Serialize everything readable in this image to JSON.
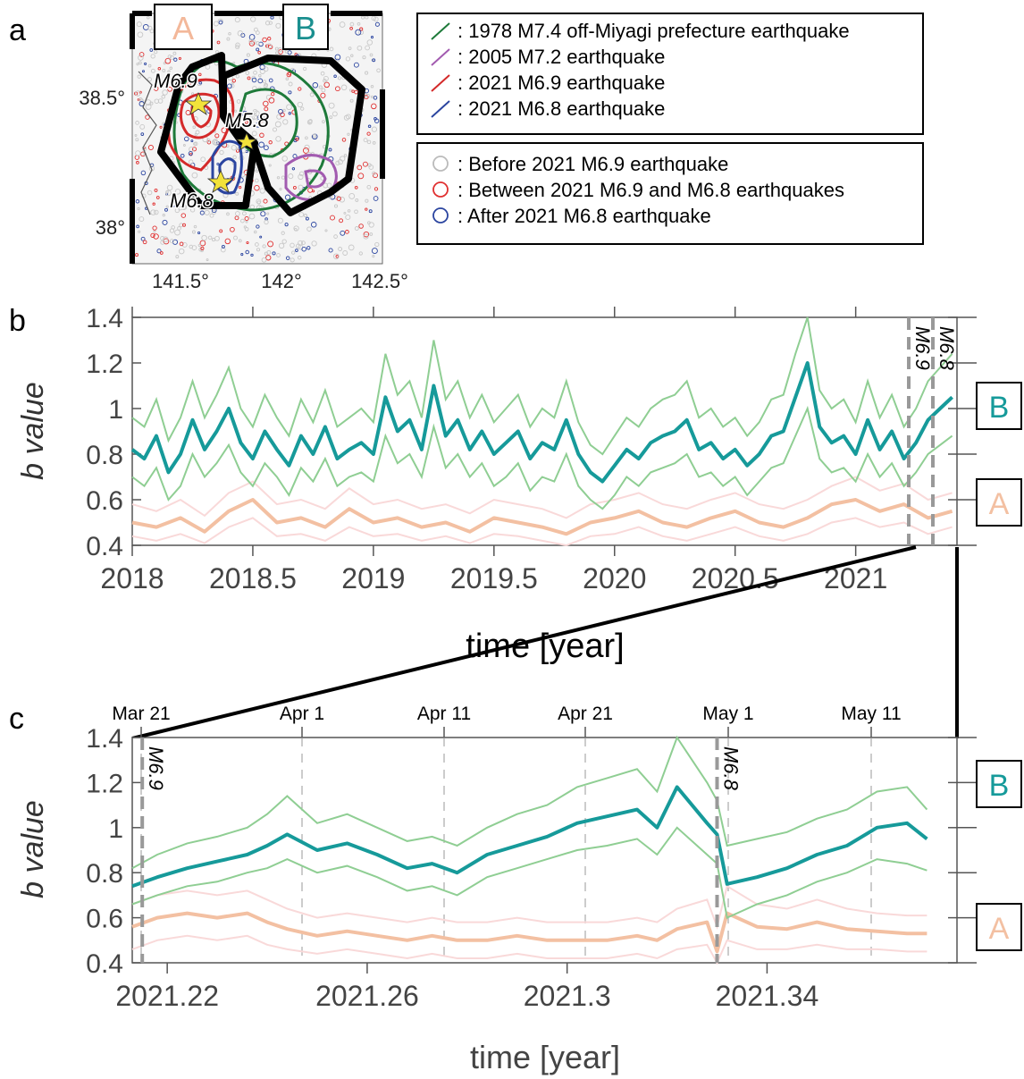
{
  "panel_labels": {
    "a": "a",
    "b": "b",
    "c": "c"
  },
  "map": {
    "lat_ticks": [
      "38.5°",
      "38°"
    ],
    "lon_ticks": [
      "141.5°",
      "142°",
      "142.5°"
    ],
    "region_labels": {
      "A": "A",
      "B": "B"
    },
    "quake_labels": [
      "M6.9",
      "M5.8",
      "M6.8"
    ],
    "colors": {
      "region_a": "#f3b89a",
      "region_b": "#1a8f8f"
    },
    "legend_top": [
      {
        "text": ": 1978 M7.4 off-Miyagi prefecture earthquake",
        "color": "#1e7a3a"
      },
      {
        "text": ": 2005 M7.2 earthquake",
        "color": "#a25bb0"
      },
      {
        "text": ": 2021 M6.9 earthquake",
        "color": "#d42a2a"
      },
      {
        "text": ": 2021 M6.8 earthquake",
        "color": "#2b45a0"
      }
    ],
    "legend_bottom": [
      {
        "text": ": Before 2021 M6.9 earthquake",
        "color": "#bbbbbb"
      },
      {
        "text": ": Between 2021 M6.9 and M6.8 earthquakes",
        "color": "#e03030"
      },
      {
        "text": ": After 2021 M6.8 earthquake",
        "color": "#2b45a0"
      }
    ]
  },
  "chart_data": [
    {
      "type": "line",
      "panel": "b",
      "xlabel": "time [year]",
      "ylabel": "b value",
      "xlim": [
        2018.0,
        2021.42
      ],
      "ylim": [
        0.4,
        1.4
      ],
      "x_ticks": [
        "2018",
        "2018.5",
        "2019",
        "2019.5",
        "2020",
        "2020.5",
        "2021"
      ],
      "y_ticks": [
        "1.4",
        "1.2",
        "1",
        "0.8",
        "0.6",
        "0.4"
      ],
      "event_labels": [
        "M6.9",
        "M6.8"
      ],
      "events": [
        2021.22,
        2021.32
      ],
      "side_labels": [
        "B",
        "A"
      ],
      "series": [
        {
          "name": "B",
          "color": "#169a9a",
          "band_color": "#8fce93",
          "x": [
            2018.0,
            2018.05,
            2018.1,
            2018.15,
            2018.2,
            2018.25,
            2018.3,
            2018.35,
            2018.4,
            2018.45,
            2018.5,
            2018.55,
            2018.6,
            2018.65,
            2018.7,
            2018.75,
            2018.8,
            2018.85,
            2018.9,
            2018.95,
            2019.0,
            2019.05,
            2019.1,
            2019.15,
            2019.2,
            2019.25,
            2019.3,
            2019.35,
            2019.4,
            2019.45,
            2019.5,
            2019.55,
            2019.6,
            2019.65,
            2019.7,
            2019.75,
            2019.8,
            2019.85,
            2019.9,
            2019.95,
            2020.0,
            2020.05,
            2020.1,
            2020.15,
            2020.2,
            2020.25,
            2020.3,
            2020.35,
            2020.4,
            2020.45,
            2020.5,
            2020.55,
            2020.6,
            2020.65,
            2020.7,
            2020.75,
            2020.8,
            2020.85,
            2020.9,
            2020.95,
            2021.0,
            2021.05,
            2021.1,
            2021.15,
            2021.2,
            2021.25,
            2021.3,
            2021.35,
            2021.4
          ],
          "y": [
            0.82,
            0.78,
            0.88,
            0.72,
            0.8,
            0.95,
            0.82,
            0.9,
            1.0,
            0.85,
            0.78,
            0.9,
            0.82,
            0.75,
            0.88,
            0.8,
            0.92,
            0.78,
            0.82,
            0.85,
            0.8,
            1.05,
            0.9,
            0.95,
            0.82,
            1.1,
            0.88,
            0.95,
            0.82,
            0.9,
            0.8,
            0.85,
            0.9,
            0.78,
            0.85,
            0.82,
            0.95,
            0.8,
            0.72,
            0.68,
            0.75,
            0.82,
            0.78,
            0.85,
            0.88,
            0.9,
            0.95,
            0.82,
            0.85,
            0.78,
            0.82,
            0.75,
            0.8,
            0.88,
            0.9,
            1.05,
            1.2,
            0.92,
            0.85,
            0.88,
            0.8,
            0.95,
            0.82,
            0.9,
            0.78,
            0.85,
            0.95,
            1.0,
            1.05
          ],
          "lower": [
            0.7,
            0.66,
            0.74,
            0.6,
            0.66,
            0.8,
            0.7,
            0.76,
            0.84,
            0.72,
            0.66,
            0.76,
            0.7,
            0.62,
            0.74,
            0.68,
            0.78,
            0.66,
            0.7,
            0.72,
            0.68,
            0.88,
            0.76,
            0.8,
            0.7,
            0.92,
            0.74,
            0.8,
            0.7,
            0.76,
            0.66,
            0.7,
            0.76,
            0.64,
            0.7,
            0.68,
            0.8,
            0.66,
            0.6,
            0.56,
            0.62,
            0.7,
            0.66,
            0.72,
            0.74,
            0.76,
            0.8,
            0.7,
            0.72,
            0.66,
            0.7,
            0.62,
            0.68,
            0.74,
            0.76,
            0.88,
            1.0,
            0.78,
            0.72,
            0.74,
            0.68,
            0.8,
            0.7,
            0.76,
            0.66,
            0.72,
            0.8,
            0.84,
            0.88
          ],
          "upper": [
            0.96,
            0.92,
            1.04,
            0.86,
            0.96,
            1.12,
            0.96,
            1.06,
            1.18,
            1.0,
            0.92,
            1.06,
            0.96,
            0.88,
            1.04,
            0.94,
            1.08,
            0.92,
            0.96,
            1.0,
            0.94,
            1.24,
            1.06,
            1.12,
            0.96,
            1.3,
            1.04,
            1.12,
            0.96,
            1.06,
            0.94,
            1.0,
            1.06,
            0.92,
            1.0,
            0.96,
            1.12,
            0.94,
            0.84,
            0.8,
            0.88,
            0.96,
            0.92,
            1.0,
            1.04,
            1.06,
            1.12,
            0.96,
            1.0,
            0.92,
            0.96,
            0.88,
            0.94,
            1.04,
            1.06,
            1.24,
            1.4,
            1.08,
            1.0,
            1.04,
            0.94,
            1.12,
            0.96,
            1.06,
            0.92,
            1.0,
            1.12,
            1.18,
            1.24
          ]
        },
        {
          "name": "A",
          "color": "#f3c0a2",
          "band_color": "#f9d9d9",
          "x": [
            2018.0,
            2018.1,
            2018.2,
            2018.3,
            2018.4,
            2018.5,
            2018.6,
            2018.7,
            2018.8,
            2018.9,
            2019.0,
            2019.1,
            2019.2,
            2019.3,
            2019.4,
            2019.5,
            2019.6,
            2019.7,
            2019.8,
            2019.9,
            2020.0,
            2020.1,
            2020.2,
            2020.3,
            2020.4,
            2020.5,
            2020.6,
            2020.7,
            2020.8,
            2020.9,
            2021.0,
            2021.1,
            2021.2,
            2021.3,
            2021.4
          ],
          "y": [
            0.5,
            0.48,
            0.52,
            0.46,
            0.55,
            0.6,
            0.5,
            0.52,
            0.48,
            0.56,
            0.5,
            0.52,
            0.48,
            0.5,
            0.46,
            0.52,
            0.5,
            0.48,
            0.45,
            0.5,
            0.52,
            0.55,
            0.5,
            0.48,
            0.52,
            0.55,
            0.5,
            0.48,
            0.52,
            0.58,
            0.6,
            0.55,
            0.58,
            0.52,
            0.55
          ],
          "lower": [
            0.44,
            0.42,
            0.45,
            0.41,
            0.48,
            0.52,
            0.44,
            0.45,
            0.42,
            0.48,
            0.44,
            0.45,
            0.42,
            0.44,
            0.41,
            0.45,
            0.44,
            0.42,
            0.4,
            0.44,
            0.45,
            0.48,
            0.44,
            0.42,
            0.45,
            0.48,
            0.44,
            0.42,
            0.45,
            0.5,
            0.52,
            0.48,
            0.5,
            0.45,
            0.48
          ],
          "upper": [
            0.58,
            0.55,
            0.6,
            0.53,
            0.63,
            0.68,
            0.58,
            0.6,
            0.56,
            0.65,
            0.58,
            0.6,
            0.56,
            0.58,
            0.54,
            0.6,
            0.58,
            0.56,
            0.52,
            0.58,
            0.6,
            0.63,
            0.58,
            0.56,
            0.6,
            0.63,
            0.58,
            0.56,
            0.6,
            0.66,
            0.7,
            0.64,
            0.67,
            0.6,
            0.63
          ]
        }
      ]
    },
    {
      "type": "line",
      "panel": "c",
      "xlabel": "time [year]",
      "ylabel": "b value",
      "xlim": [
        2021.213,
        2021.378
      ],
      "ylim": [
        0.4,
        1.4
      ],
      "x_ticks": [
        "2021.22",
        "2021.26",
        "2021.3",
        "2021.34"
      ],
      "top_ticks": [
        "Mar 21",
        "Apr 1",
        "Apr 11",
        "Apr 21",
        "May 1",
        "May 11"
      ],
      "y_ticks": [
        "1.4",
        "1.2",
        "1",
        "0.8",
        "0.6",
        "0.4"
      ],
      "event_labels": [
        "M6.9",
        "M6.8"
      ],
      "events": [
        2021.215,
        2021.33
      ],
      "side_labels": [
        "B",
        "A"
      ],
      "series": [
        {
          "name": "B",
          "color": "#169a9a",
          "band_color": "#8fce93",
          "x": [
            2021.213,
            2021.218,
            2021.224,
            2021.23,
            2021.236,
            2021.24,
            2021.244,
            2021.25,
            2021.256,
            2021.262,
            2021.268,
            2021.273,
            2021.278,
            2021.284,
            2021.29,
            2021.296,
            2021.302,
            2021.308,
            2021.314,
            2021.318,
            2021.322,
            2021.328,
            2021.33,
            2021.332,
            2021.338,
            2021.344,
            2021.35,
            2021.356,
            2021.362,
            2021.368,
            2021.372
          ],
          "y": [
            0.74,
            0.78,
            0.82,
            0.85,
            0.88,
            0.92,
            0.97,
            0.9,
            0.93,
            0.88,
            0.82,
            0.84,
            0.8,
            0.88,
            0.92,
            0.96,
            1.02,
            1.05,
            1.08,
            1.0,
            1.18,
            1.02,
            0.97,
            0.75,
            0.78,
            0.82,
            0.88,
            0.92,
            1.0,
            1.02,
            0.95
          ],
          "lower": [
            0.66,
            0.7,
            0.74,
            0.76,
            0.8,
            0.82,
            0.86,
            0.8,
            0.83,
            0.78,
            0.72,
            0.74,
            0.7,
            0.78,
            0.82,
            0.86,
            0.9,
            0.92,
            0.95,
            0.88,
            1.0,
            0.88,
            0.84,
            0.6,
            0.66,
            0.7,
            0.76,
            0.8,
            0.86,
            0.84,
            0.81
          ],
          "upper": [
            0.82,
            0.88,
            0.93,
            0.96,
            1.0,
            1.06,
            1.14,
            1.02,
            1.06,
            1.0,
            0.94,
            0.96,
            0.92,
            1.0,
            1.06,
            1.1,
            1.18,
            1.22,
            1.26,
            1.16,
            1.4,
            1.2,
            1.12,
            0.92,
            0.95,
            0.98,
            1.04,
            1.08,
            1.16,
            1.18,
            1.08
          ]
        },
        {
          "name": "A",
          "color": "#f3c0a2",
          "band_color": "#f9d9d9",
          "x": [
            2021.213,
            2021.218,
            2021.224,
            2021.23,
            2021.236,
            2021.24,
            2021.244,
            2021.25,
            2021.256,
            2021.262,
            2021.268,
            2021.273,
            2021.278,
            2021.284,
            2021.29,
            2021.296,
            2021.302,
            2021.308,
            2021.314,
            2021.318,
            2021.322,
            2021.328,
            2021.33,
            2021.332,
            2021.338,
            2021.344,
            2021.35,
            2021.356,
            2021.362,
            2021.368,
            2021.372
          ],
          "y": [
            0.56,
            0.6,
            0.62,
            0.6,
            0.62,
            0.58,
            0.55,
            0.52,
            0.54,
            0.52,
            0.5,
            0.52,
            0.5,
            0.5,
            0.52,
            0.5,
            0.5,
            0.5,
            0.52,
            0.5,
            0.55,
            0.58,
            0.45,
            0.62,
            0.56,
            0.55,
            0.58,
            0.55,
            0.54,
            0.53,
            0.53
          ],
          "lower": [
            0.46,
            0.5,
            0.52,
            0.5,
            0.52,
            0.48,
            0.46,
            0.44,
            0.46,
            0.44,
            0.42,
            0.44,
            0.42,
            0.42,
            0.44,
            0.42,
            0.42,
            0.42,
            0.44,
            0.42,
            0.46,
            0.48,
            0.4,
            0.5,
            0.46,
            0.46,
            0.48,
            0.46,
            0.46,
            0.45,
            0.45
          ],
          "upper": [
            0.66,
            0.7,
            0.72,
            0.7,
            0.72,
            0.68,
            0.64,
            0.6,
            0.62,
            0.6,
            0.58,
            0.6,
            0.58,
            0.58,
            0.6,
            0.58,
            0.58,
            0.58,
            0.6,
            0.58,
            0.64,
            0.68,
            0.56,
            0.74,
            0.66,
            0.64,
            0.68,
            0.64,
            0.62,
            0.61,
            0.61
          ]
        }
      ]
    }
  ]
}
